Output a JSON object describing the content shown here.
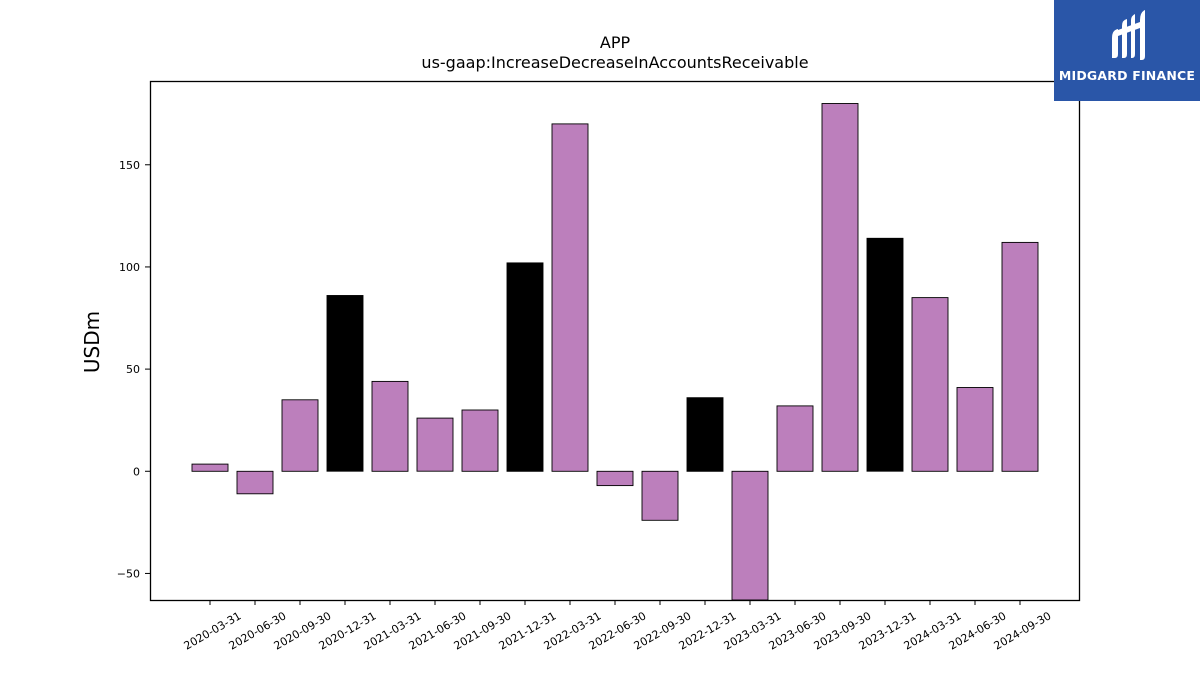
{
  "chart_data": {
    "type": "bar",
    "title": "APP",
    "subtitle": "us-gaap:IncreaseDecreaseInAccountsReceivable",
    "xlabel": "",
    "ylabel": "USDm",
    "ylim": [
      -63,
      191
    ],
    "yticks": [
      -50,
      0,
      50,
      100,
      150
    ],
    "ytick_labels": [
      "−50",
      "0",
      "50",
      "100",
      "150"
    ],
    "grid": false,
    "categories": [
      "2020-03-31",
      "2020-06-30",
      "2020-09-30",
      "2020-12-31",
      "2021-03-31",
      "2021-06-30",
      "2021-09-30",
      "2021-12-31",
      "2022-03-31",
      "2022-06-30",
      "2022-09-30",
      "2022-12-31",
      "2023-03-31",
      "2023-06-30",
      "2023-09-30",
      "2023-12-31",
      "2024-03-31",
      "2024-06-30",
      "2024-09-30"
    ],
    "values": [
      3.5,
      -11,
      35,
      86,
      44,
      26,
      30,
      102,
      170,
      -7,
      -24,
      36,
      -63,
      32,
      180,
      114,
      85,
      41,
      112
    ],
    "colors": {
      "quarter": "#bc7fbc",
      "year_end": "#000000",
      "edge": "#000000"
    }
  },
  "logo": {
    "text": "MIDGARD FINANCE",
    "background": "#2a56a8"
  }
}
